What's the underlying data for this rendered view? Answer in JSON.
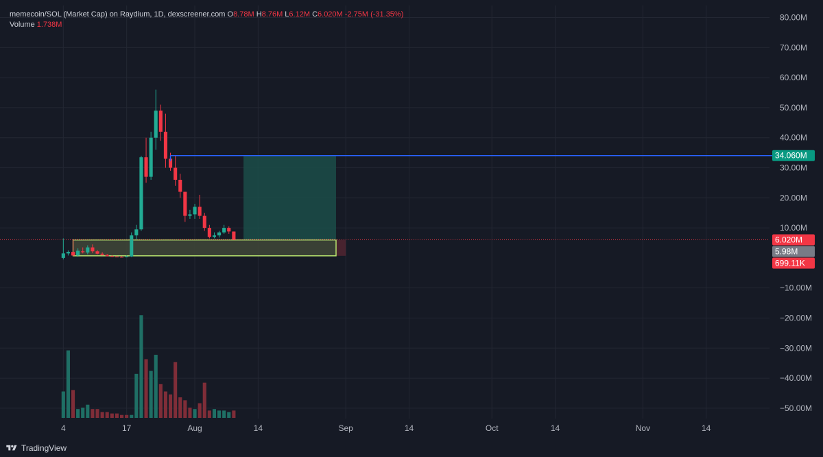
{
  "legend": {
    "symbol": "memecoin/SOL (Market Cap) on Raydium, 1D, dexscreener.com",
    "o_label": "O",
    "o_value": "8.78M",
    "h_label": "H",
    "h_value": "8.76M",
    "l_label": "L",
    "l_value": "6.12M",
    "c_label": "C",
    "c_value": "6.020M",
    "change": "-2.75M (-31.35%)",
    "volume_label": "Volume",
    "volume_value": "1.738M"
  },
  "branding": {
    "text": "TradingView",
    "icon": "tradingview-logo-icon"
  },
  "colors": {
    "background": "#161a25",
    "grid": "#232733",
    "up": "#22ab94",
    "down": "#f23645",
    "volume_up": "#1f6f65",
    "volume_down": "#7f2d38",
    "target_line": "#2962ff",
    "profit_zone": "#1b4d49",
    "loss_zone": "#5a2733",
    "entry_box": "#b7e36e"
  },
  "chart_data": {
    "type": "candlestick",
    "price_axis": {
      "ticks": [
        80,
        70,
        60,
        50,
        40,
        30,
        20,
        10,
        -10,
        -20,
        -30,
        -40,
        -50
      ],
      "tick_labels": [
        "80.00M",
        "70.00M",
        "60.00M",
        "50.00M",
        "40.00M",
        "30.00M",
        "20.00M",
        "10.00M",
        "−10.00M",
        "−20.00M",
        "−30.00M",
        "−40.00M",
        "−50.00M"
      ],
      "range": [
        -53,
        84
      ],
      "unit": "M"
    },
    "time_axis": {
      "ticks": [
        {
          "label": "4",
          "day": 4
        },
        {
          "label": "17",
          "day": 17
        },
        {
          "label": "Aug",
          "day": 31
        },
        {
          "label": "14",
          "day": 44
        },
        {
          "label": "Sep",
          "day": 62
        },
        {
          "label": "14",
          "day": 75
        },
        {
          "label": "Oct",
          "day": 92
        },
        {
          "label": "14",
          "day": 105
        },
        {
          "label": "Nov",
          "day": 123
        },
        {
          "label": "14",
          "day": 136
        }
      ],
      "range": [
        -9,
        149
      ]
    },
    "candles": [
      {
        "day": 4,
        "o": 0.0,
        "h": 6.5,
        "l": -0.5,
        "c": 1.5
      },
      {
        "day": 5,
        "o": 1.5,
        "h": 2.5,
        "l": 0.8,
        "c": 2.0
      },
      {
        "day": 6,
        "o": 2.0,
        "h": 6.0,
        "l": 0.5,
        "c": 0.8
      },
      {
        "day": 7,
        "o": 0.8,
        "h": 3.2,
        "l": 0.4,
        "c": 2.4
      },
      {
        "day": 8,
        "o": 2.2,
        "h": 3.5,
        "l": 1.5,
        "c": 1.9
      },
      {
        "day": 9,
        "o": 1.8,
        "h": 4.2,
        "l": 1.2,
        "c": 3.5
      },
      {
        "day": 10,
        "o": 3.5,
        "h": 4.5,
        "l": 1.6,
        "c": 2.2
      },
      {
        "day": 11,
        "o": 2.2,
        "h": 2.6,
        "l": 1.2,
        "c": 1.4
      },
      {
        "day": 12,
        "o": 1.4,
        "h": 1.9,
        "l": 0.8,
        "c": 1.0
      },
      {
        "day": 13,
        "o": 1.0,
        "h": 1.3,
        "l": 0.5,
        "c": 0.6
      },
      {
        "day": 14,
        "o": 0.6,
        "h": 0.9,
        "l": 0.3,
        "c": 0.45
      },
      {
        "day": 15,
        "o": 0.45,
        "h": 0.7,
        "l": 0.2,
        "c": 0.35
      },
      {
        "day": 16,
        "o": 0.35,
        "h": 0.6,
        "l": 0.2,
        "c": 0.3
      },
      {
        "day": 17,
        "o": 0.3,
        "h": 0.8,
        "l": 0.2,
        "c": 0.5
      },
      {
        "day": 18,
        "o": 0.5,
        "h": 8.5,
        "l": 0.3,
        "c": 7.5
      },
      {
        "day": 19,
        "o": 7.5,
        "h": 11.0,
        "l": 6.0,
        "c": 9.5
      },
      {
        "day": 20,
        "o": 9.5,
        "h": 34.0,
        "l": 9.0,
        "c": 33.5
      },
      {
        "day": 21,
        "o": 33.5,
        "h": 40.0,
        "l": 25.0,
        "c": 27.0
      },
      {
        "day": 22,
        "o": 27.0,
        "h": 42.0,
        "l": 26.0,
        "c": 40.0
      },
      {
        "day": 23,
        "o": 40.0,
        "h": 56.0,
        "l": 36.0,
        "c": 49.0
      },
      {
        "day": 24,
        "o": 49.0,
        "h": 51.0,
        "l": 39.0,
        "c": 42.0
      },
      {
        "day": 25,
        "o": 42.0,
        "h": 48.0,
        "l": 30.0,
        "c": 33.0
      },
      {
        "day": 26,
        "o": 33.0,
        "h": 35.0,
        "l": 29.0,
        "c": 30.0
      },
      {
        "day": 27,
        "o": 30.0,
        "h": 34.0,
        "l": 24.0,
        "c": 26.0
      },
      {
        "day": 28,
        "o": 26.0,
        "h": 28.0,
        "l": 20.0,
        "c": 22.0
      },
      {
        "day": 29,
        "o": 22.0,
        "h": 22.0,
        "l": 12.0,
        "c": 14.0
      },
      {
        "day": 30,
        "o": 14.0,
        "h": 16.0,
        "l": 13.0,
        "c": 14.5
      },
      {
        "day": 31,
        "o": 14.5,
        "h": 18.0,
        "l": 13.0,
        "c": 17.0
      },
      {
        "day": 32,
        "o": 17.0,
        "h": 21.0,
        "l": 13.0,
        "c": 14.0
      },
      {
        "day": 33,
        "o": 14.0,
        "h": 15.0,
        "l": 9.0,
        "c": 10.0
      },
      {
        "day": 34,
        "o": 10.0,
        "h": 11.0,
        "l": 6.5,
        "c": 7.0
      },
      {
        "day": 35,
        "o": 7.0,
        "h": 8.5,
        "l": 6.5,
        "c": 7.5
      },
      {
        "day": 36,
        "o": 7.5,
        "h": 9.0,
        "l": 6.8,
        "c": 8.5
      },
      {
        "day": 37,
        "o": 8.5,
        "h": 11.0,
        "l": 8.0,
        "c": 10.0
      },
      {
        "day": 38,
        "o": 10.0,
        "h": 10.5,
        "l": 8.0,
        "c": 8.8
      },
      {
        "day": 39,
        "o": 8.78,
        "h": 8.76,
        "l": 6.12,
        "c": 6.02
      }
    ],
    "volume": {
      "range": [
        0,
        36
      ],
      "bars": [
        {
          "day": 4,
          "v": 9.0,
          "dir": "up"
        },
        {
          "day": 5,
          "v": 23.0,
          "dir": "up"
        },
        {
          "day": 6,
          "v": 9.5,
          "dir": "down"
        },
        {
          "day": 7,
          "v": 3.0,
          "dir": "up"
        },
        {
          "day": 8,
          "v": 3.5,
          "dir": "up"
        },
        {
          "day": 9,
          "v": 4.5,
          "dir": "up"
        },
        {
          "day": 10,
          "v": 3.0,
          "dir": "down"
        },
        {
          "day": 11,
          "v": 3.0,
          "dir": "down"
        },
        {
          "day": 12,
          "v": 2.0,
          "dir": "down"
        },
        {
          "day": 13,
          "v": 2.0,
          "dir": "down"
        },
        {
          "day": 14,
          "v": 1.5,
          "dir": "down"
        },
        {
          "day": 15,
          "v": 1.5,
          "dir": "down"
        },
        {
          "day": 16,
          "v": 1.0,
          "dir": "down"
        },
        {
          "day": 17,
          "v": 1.0,
          "dir": "down"
        },
        {
          "day": 18,
          "v": 1.0,
          "dir": "up"
        },
        {
          "day": 19,
          "v": 15.0,
          "dir": "up"
        },
        {
          "day": 20,
          "v": 35.0,
          "dir": "up"
        },
        {
          "day": 21,
          "v": 20.0,
          "dir": "down"
        },
        {
          "day": 22,
          "v": 16.0,
          "dir": "up"
        },
        {
          "day": 23,
          "v": 21.5,
          "dir": "up"
        },
        {
          "day": 24,
          "v": 11.5,
          "dir": "down"
        },
        {
          "day": 25,
          "v": 9.0,
          "dir": "down"
        },
        {
          "day": 26,
          "v": 8.0,
          "dir": "down"
        },
        {
          "day": 27,
          "v": 19.0,
          "dir": "down"
        },
        {
          "day": 28,
          "v": 7.0,
          "dir": "down"
        },
        {
          "day": 29,
          "v": 6.0,
          "dir": "down"
        },
        {
          "day": 30,
          "v": 3.5,
          "dir": "down"
        },
        {
          "day": 31,
          "v": 3.0,
          "dir": "up"
        },
        {
          "day": 32,
          "v": 5.0,
          "dir": "down"
        },
        {
          "day": 33,
          "v": 12.0,
          "dir": "down"
        },
        {
          "day": 34,
          "v": 2.5,
          "dir": "down"
        },
        {
          "day": 35,
          "v": 3.0,
          "dir": "up"
        },
        {
          "day": 36,
          "v": 2.5,
          "dir": "up"
        },
        {
          "day": 37,
          "v": 2.5,
          "dir": "up"
        },
        {
          "day": 38,
          "v": 2.0,
          "dir": "up"
        },
        {
          "day": 39,
          "v": 2.5,
          "dir": "down"
        }
      ]
    },
    "target_line": {
      "value": 34.06,
      "from_day": 26
    },
    "position": {
      "entry": 5.98,
      "target": 34.06,
      "stop": 0.69911,
      "start_day": 6,
      "profit_start_day": 41,
      "end_day": 60,
      "loss_end_day": 62
    },
    "entry_box": {
      "from_day": 6,
      "to_day": 60,
      "top": 5.98,
      "bottom": 0.69911
    },
    "current_price": 6.02,
    "price_labels": [
      {
        "text": "34.060M",
        "value": 34.06,
        "color": "#089981"
      },
      {
        "text": "6.020M",
        "value": 6.02,
        "color": "#f23645"
      },
      {
        "text": "5.98M",
        "value": 5.98,
        "color": "#787b86"
      },
      {
        "text": "699.11K",
        "value": 0.69911,
        "color": "#f23645"
      }
    ]
  }
}
